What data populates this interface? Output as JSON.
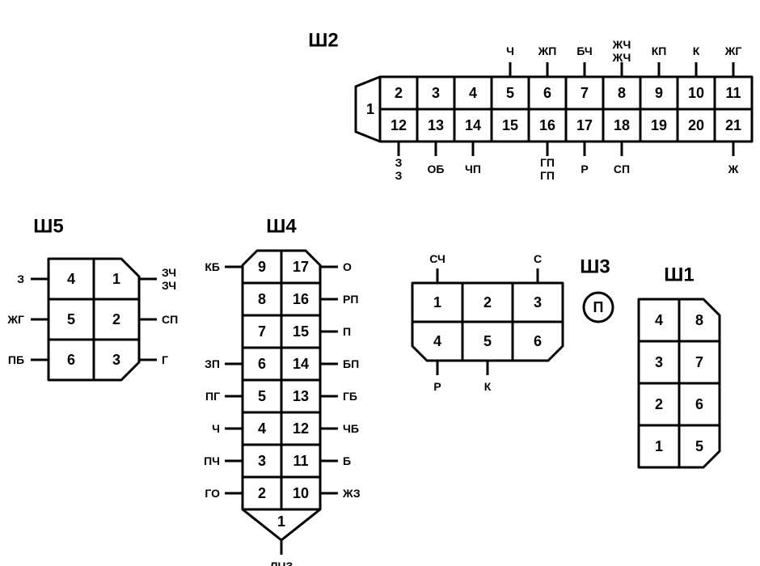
{
  "colors": {
    "stroke": "#000000",
    "bg": "#ffffff"
  },
  "stroke_width": 3,
  "w2": {
    "title": "Ш2",
    "top_row": [
      "2",
      "3",
      "4",
      "5",
      "6",
      "7",
      "8",
      "9",
      "10",
      "11"
    ],
    "bot_row": [
      "12",
      "13",
      "14",
      "15",
      "16",
      "17",
      "18",
      "19",
      "20",
      "21"
    ],
    "left_cell": "1",
    "top_labels": [
      "Ч",
      "ЖП",
      "БЧ",
      "ЖЧ\nЖЧ",
      "КП",
      "К",
      "ЖГ"
    ],
    "top_label_cols": [
      5,
      6,
      7,
      8,
      9,
      10,
      11
    ],
    "bot_labels": [
      {
        "col": 1,
        "text": "З\nЗ"
      },
      {
        "col": 2,
        "text": "ОБ"
      },
      {
        "col": 3,
        "text": "ЧП"
      },
      {
        "col": 5,
        "text": "ГП\nГП"
      },
      {
        "col": 6,
        "text": "Р"
      },
      {
        "col": 7,
        "text": "СП"
      },
      {
        "col": 10,
        "text": "Ж"
      }
    ]
  },
  "w5": {
    "title": "Ш5",
    "cells": [
      [
        "4",
        "1"
      ],
      [
        "5",
        "2"
      ],
      [
        "6",
        "3"
      ]
    ],
    "left_labels": [
      "З",
      "ЖГ",
      "ПБ"
    ],
    "right_labels": [
      "ЗЧ\nЗЧ",
      "СП",
      "Г"
    ]
  },
  "w4": {
    "title": "Ш4",
    "cells": [
      [
        "9",
        "17"
      ],
      [
        "8",
        "16"
      ],
      [
        "7",
        "15"
      ],
      [
        "6",
        "14"
      ],
      [
        "5",
        "13"
      ],
      [
        "4",
        "12"
      ],
      [
        "3",
        "11"
      ],
      [
        "2",
        "10"
      ]
    ],
    "bottom_cell": "1",
    "left_labels": [
      "КБ",
      "",
      "",
      "ЗП",
      "ПГ",
      "Ч",
      "ПЧ",
      "ГО"
    ],
    "right_labels": [
      "О",
      "РП",
      "П",
      "БП",
      "ГБ",
      "ЧБ",
      "Б",
      "ЖЗ"
    ],
    "bottom_label": "ЛЧЗ"
  },
  "w3": {
    "title": "Ш3",
    "cells": [
      [
        "1",
        "2",
        "3"
      ],
      [
        "4",
        "5",
        "6"
      ]
    ],
    "top_labels": [
      {
        "col": 0,
        "text": "СЧ"
      },
      {
        "col": 2,
        "text": "С"
      }
    ],
    "bot_labels": [
      {
        "col": 0,
        "text": "Р"
      },
      {
        "col": 1,
        "text": "К"
      }
    ],
    "circle_label": "П"
  },
  "w1": {
    "title": "Ш1",
    "cells": [
      [
        "4",
        "8"
      ],
      [
        "3",
        "7"
      ],
      [
        "2",
        "6"
      ],
      [
        "1",
        "5"
      ]
    ]
  }
}
